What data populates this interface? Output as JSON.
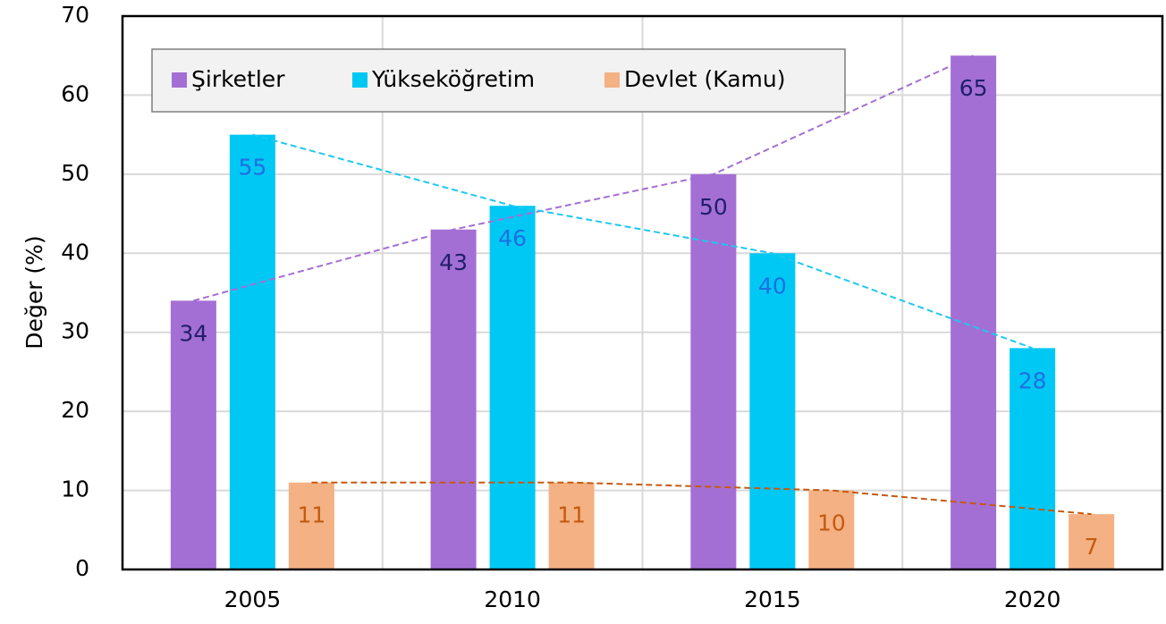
{
  "chart_data": {
    "type": "bar",
    "ylabel": "Değer (%)",
    "categories": [
      "2005",
      "2010",
      "2015",
      "2020"
    ],
    "series": [
      {
        "name": "Şirketler",
        "color": "#a46fd4",
        "label_color": "#1f1f6b",
        "trend_color": "#a46fd4",
        "values": [
          34,
          43,
          50,
          65
        ]
      },
      {
        "name": "Yükseköğretim",
        "color": "#00c8f4",
        "label_color": "#1f6fe0",
        "trend_color": "#1ec8f0",
        "values": [
          55,
          46,
          40,
          28
        ]
      },
      {
        "name": "Devlet (Kamu)",
        "color": "#f4b183",
        "label_color": "#c55a11",
        "trend_color": "#c55a11",
        "values": [
          11,
          11,
          10,
          7
        ]
      }
    ],
    "ylim": [
      0,
      70
    ],
    "yticks": [
      0,
      10,
      20,
      30,
      40,
      50,
      60,
      70
    ],
    "grid": true,
    "legend": "top-left"
  }
}
